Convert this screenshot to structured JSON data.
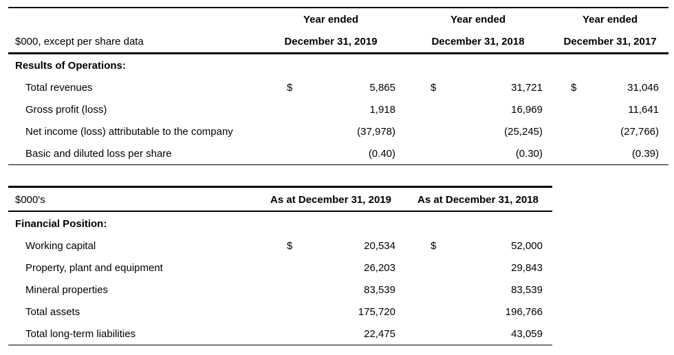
{
  "operations": {
    "unit_label": "$000, except per share data",
    "columns": [
      {
        "line1": "Year ended",
        "line2": "December 31, 2019"
      },
      {
        "line1": "Year ended",
        "line2": "December 31, 2018"
      },
      {
        "line1": "Year ended",
        "line2": "December 31, 2017"
      }
    ],
    "section": "Results of Operations:",
    "currency_symbol": "$",
    "rows": [
      {
        "label": "Total revenues",
        "values": [
          "5,865",
          "31,721",
          "31,046"
        ],
        "currency": true
      },
      {
        "label": "Gross profit (loss)",
        "values": [
          "1,918",
          "16,969",
          "11,641"
        ]
      },
      {
        "label": "Net income (loss) attributable to the company",
        "values": [
          "(37,978)",
          "(25,245)",
          "(27,766)"
        ]
      },
      {
        "label": "Basic and diluted loss per share",
        "values": [
          "(0.40)",
          "(0.30)",
          "(0.39)"
        ]
      }
    ]
  },
  "position": {
    "unit_label": "$000's",
    "columns": [
      "As at December 31, 2019",
      "As at December 31, 2018"
    ],
    "section": "Financial Position:",
    "currency_symbol": "$",
    "rows": [
      {
        "label": "Working capital",
        "values": [
          "20,534",
          "52,000"
        ],
        "currency": true
      },
      {
        "label": "Property, plant and equipment",
        "values": [
          "26,203",
          "29,843"
        ]
      },
      {
        "label": "Mineral properties",
        "values": [
          "83,539",
          "83,539"
        ]
      },
      {
        "label": "Total assets",
        "values": [
          "175,720",
          "196,766"
        ]
      },
      {
        "label": "Total long-term liabilities",
        "values": [
          "22,475",
          "43,059"
        ]
      }
    ]
  }
}
